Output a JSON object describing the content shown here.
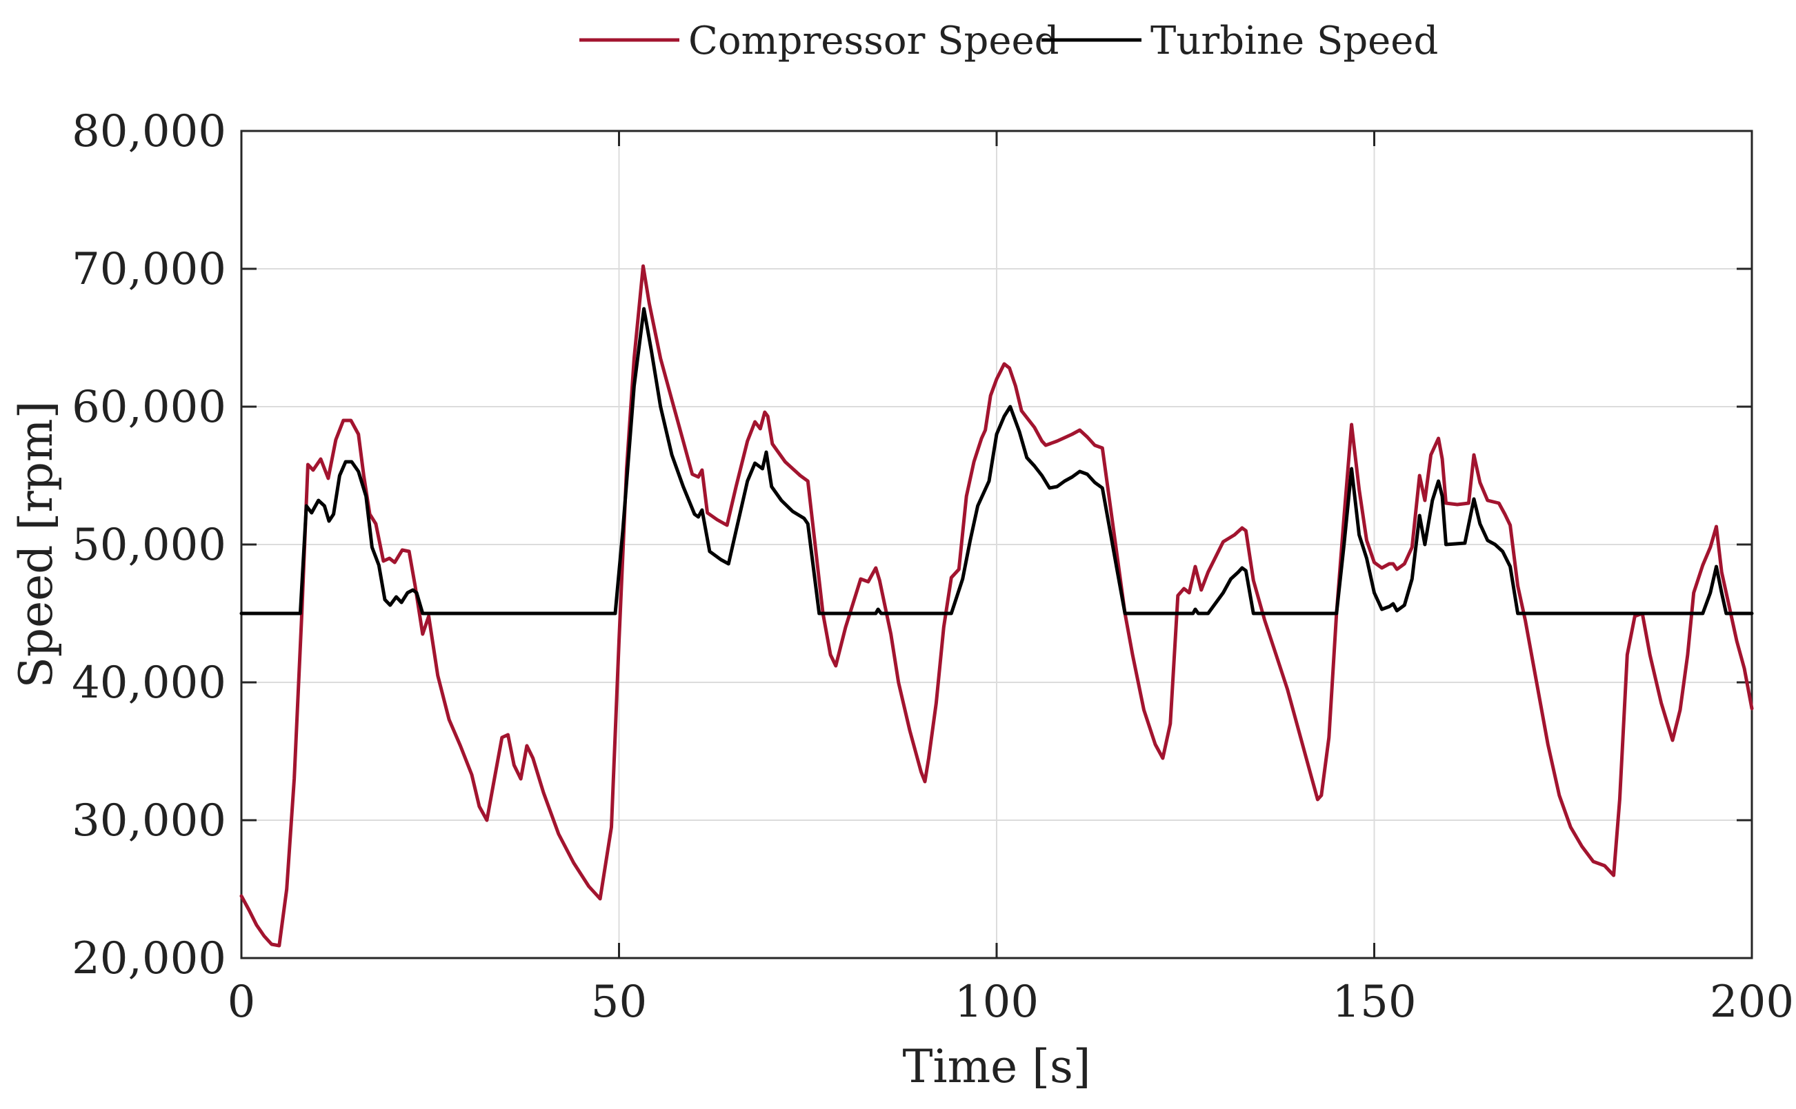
{
  "chart_data": {
    "type": "line",
    "title": "",
    "xlabel": "Time [s]",
    "ylabel": "Speed [rpm]",
    "xlim": [
      0,
      200
    ],
    "ylim": [
      20000,
      80000
    ],
    "xticks": [
      0,
      50,
      100,
      150,
      200
    ],
    "xtick_labels": [
      "0",
      "50",
      "100",
      "150",
      "200"
    ],
    "yticks": [
      20000,
      30000,
      40000,
      50000,
      60000,
      70000,
      80000
    ],
    "ytick_labels": [
      "20,000",
      "30,000",
      "40,000",
      "50,000",
      "60,000",
      "70,000",
      "80,000"
    ],
    "grid": true,
    "legend_position": "top-center",
    "series": [
      {
        "name": "Compressor Speed",
        "color": "#a2142f",
        "points": [
          [
            0,
            24500
          ],
          [
            1,
            23500
          ],
          [
            2,
            22400
          ],
          [
            3,
            21600
          ],
          [
            4,
            21000
          ],
          [
            5,
            20900
          ],
          [
            6,
            25000
          ],
          [
            7,
            33000
          ],
          [
            8,
            45000
          ],
          [
            8.8,
            55800
          ],
          [
            9.5,
            55400
          ],
          [
            10.5,
            56200
          ],
          [
            11.5,
            54800
          ],
          [
            12.5,
            57600
          ],
          [
            13.5,
            59000
          ],
          [
            14.5,
            59000
          ],
          [
            15.5,
            58000
          ],
          [
            16.2,
            55000
          ],
          [
            17,
            52200
          ],
          [
            17.8,
            51500
          ],
          [
            18.8,
            48800
          ],
          [
            19.6,
            49000
          ],
          [
            20.3,
            48700
          ],
          [
            21.3,
            49600
          ],
          [
            22.2,
            49500
          ],
          [
            23,
            47000
          ],
          [
            24,
            43500
          ],
          [
            24.8,
            44800
          ],
          [
            26,
            40500
          ],
          [
            27.5,
            37300
          ],
          [
            29,
            35400
          ],
          [
            30.5,
            33300
          ],
          [
            31.5,
            31000
          ],
          [
            32.5,
            30000
          ],
          [
            33.5,
            33000
          ],
          [
            34.5,
            36000
          ],
          [
            35.3,
            36200
          ],
          [
            36.1,
            34000
          ],
          [
            37,
            33000
          ],
          [
            37.8,
            35400
          ],
          [
            38.6,
            34500
          ],
          [
            40,
            32000
          ],
          [
            42,
            29000
          ],
          [
            44,
            26900
          ],
          [
            46,
            25200
          ],
          [
            47.5,
            24300
          ],
          [
            49,
            29500
          ],
          [
            50,
            43000
          ],
          [
            51,
            55500
          ],
          [
            52,
            63500
          ],
          [
            53.2,
            70200
          ],
          [
            54,
            67500
          ],
          [
            55.5,
            63500
          ],
          [
            57,
            60500
          ],
          [
            58.5,
            57500
          ],
          [
            59.7,
            55100
          ],
          [
            60.5,
            54900
          ],
          [
            61,
            55400
          ],
          [
            61.7,
            52300
          ],
          [
            63,
            51800
          ],
          [
            64.3,
            51400
          ],
          [
            65.5,
            54200
          ],
          [
            67,
            57500
          ],
          [
            68,
            58900
          ],
          [
            68.7,
            58400
          ],
          [
            69.3,
            59600
          ],
          [
            69.7,
            59300
          ],
          [
            70.3,
            57300
          ],
          [
            72,
            56000
          ],
          [
            74,
            55000
          ],
          [
            75,
            54600
          ],
          [
            77,
            45000
          ],
          [
            78,
            42000
          ],
          [
            78.7,
            41200
          ],
          [
            80,
            44000
          ],
          [
            82,
            47500
          ],
          [
            83,
            47300
          ],
          [
            84,
            48300
          ],
          [
            84.5,
            47400
          ],
          [
            86,
            43500
          ],
          [
            87,
            40000
          ],
          [
            88.5,
            36500
          ],
          [
            90,
            33500
          ],
          [
            90.5,
            32800
          ],
          [
            91,
            34500
          ],
          [
            92,
            38500
          ],
          [
            93,
            44000
          ],
          [
            94,
            47600
          ],
          [
            95,
            48200
          ],
          [
            96,
            53500
          ],
          [
            97,
            56000
          ],
          [
            98,
            57700
          ],
          [
            98.5,
            58300
          ],
          [
            99.2,
            60800
          ],
          [
            100,
            62000
          ],
          [
            101,
            63100
          ],
          [
            101.7,
            62800
          ],
          [
            102.5,
            61500
          ],
          [
            103.3,
            59700
          ],
          [
            105,
            58500
          ],
          [
            106,
            57500
          ],
          [
            106.5,
            57200
          ],
          [
            108,
            57500
          ],
          [
            110,
            58000
          ],
          [
            111,
            58300
          ],
          [
            112,
            57800
          ],
          [
            113,
            57200
          ],
          [
            114,
            57000
          ],
          [
            116,
            49000
          ],
          [
            117,
            45000
          ],
          [
            118,
            42000
          ],
          [
            119.5,
            38000
          ],
          [
            121,
            35500
          ],
          [
            122,
            34500
          ],
          [
            123,
            37000
          ],
          [
            124,
            46300
          ],
          [
            124.8,
            46800
          ],
          [
            125.5,
            46500
          ],
          [
            126.3,
            48400
          ],
          [
            127.1,
            46700
          ],
          [
            128,
            48000
          ],
          [
            130,
            50200
          ],
          [
            131.5,
            50700
          ],
          [
            132.5,
            51200
          ],
          [
            133,
            51000
          ],
          [
            134,
            47400
          ],
          [
            135.5,
            44500
          ],
          [
            137,
            42000
          ],
          [
            138.5,
            39500
          ],
          [
            140,
            36500
          ],
          [
            141.5,
            33500
          ],
          [
            142.5,
            31500
          ],
          [
            143,
            31800
          ],
          [
            144,
            36000
          ],
          [
            145,
            45000
          ],
          [
            146,
            52000
          ],
          [
            147,
            58700
          ],
          [
            148,
            54000
          ],
          [
            149,
            50300
          ],
          [
            150,
            48700
          ],
          [
            151,
            48300
          ],
          [
            152,
            48600
          ],
          [
            152.5,
            48600
          ],
          [
            153,
            48200
          ],
          [
            154,
            48600
          ],
          [
            155,
            49800
          ],
          [
            156,
            55000
          ],
          [
            156.7,
            53200
          ],
          [
            157.5,
            56500
          ],
          [
            158.5,
            57700
          ],
          [
            159,
            56200
          ],
          [
            159.5,
            53000
          ],
          [
            161,
            52900
          ],
          [
            162.5,
            53000
          ],
          [
            163.2,
            56500
          ],
          [
            164,
            54500
          ],
          [
            165,
            53200
          ],
          [
            166.5,
            53000
          ],
          [
            167.3,
            52200
          ],
          [
            168,
            51400
          ],
          [
            169,
            47000
          ],
          [
            170,
            44500
          ],
          [
            171.5,
            40000
          ],
          [
            173,
            35500
          ],
          [
            174.5,
            31800
          ],
          [
            176,
            29500
          ],
          [
            177.5,
            28100
          ],
          [
            179,
            27000
          ],
          [
            180.5,
            26700
          ],
          [
            181.7,
            26000
          ],
          [
            182.5,
            31500
          ],
          [
            183.5,
            42000
          ],
          [
            184.5,
            44800
          ],
          [
            185.5,
            45000
          ],
          [
            186.5,
            42000
          ],
          [
            188,
            38500
          ],
          [
            189.5,
            35800
          ],
          [
            190.5,
            38000
          ],
          [
            191.5,
            42000
          ],
          [
            192.3,
            46500
          ],
          [
            193.5,
            48500
          ],
          [
            194.5,
            49800
          ],
          [
            195.3,
            51300
          ],
          [
            196,
            48000
          ],
          [
            197,
            45500
          ],
          [
            198,
            43000
          ],
          [
            199,
            41000
          ],
          [
            200,
            38100
          ]
        ]
      },
      {
        "name": "Turbine Speed",
        "color": "#000000",
        "points": [
          [
            0,
            45000
          ],
          [
            7.8,
            45000
          ],
          [
            8.6,
            52800
          ],
          [
            9.3,
            52300
          ],
          [
            10.2,
            53200
          ],
          [
            11,
            52800
          ],
          [
            11.6,
            51700
          ],
          [
            12.2,
            52200
          ],
          [
            13,
            55000
          ],
          [
            13.8,
            56000
          ],
          [
            14.6,
            56000
          ],
          [
            15.5,
            55300
          ],
          [
            16.5,
            53500
          ],
          [
            17.3,
            49800
          ],
          [
            18.2,
            48500
          ],
          [
            19,
            46000
          ],
          [
            19.7,
            45600
          ],
          [
            20.5,
            46200
          ],
          [
            21.2,
            45800
          ],
          [
            22,
            46500
          ],
          [
            22.7,
            46700
          ],
          [
            23.2,
            46500
          ],
          [
            24,
            45000
          ],
          [
            49.5,
            45000
          ],
          [
            50.5,
            51000
          ],
          [
            52,
            61500
          ],
          [
            53.3,
            67100
          ],
          [
            54.3,
            64000
          ],
          [
            55.5,
            60000
          ],
          [
            57,
            56500
          ],
          [
            58.5,
            54200
          ],
          [
            60,
            52200
          ],
          [
            60.5,
            52000
          ],
          [
            61,
            52500
          ],
          [
            62,
            49500
          ],
          [
            63.5,
            48900
          ],
          [
            64.5,
            48600
          ],
          [
            65.5,
            51000
          ],
          [
            67,
            54600
          ],
          [
            68,
            55900
          ],
          [
            69,
            55500
          ],
          [
            69.5,
            56700
          ],
          [
            70.2,
            54200
          ],
          [
            71.5,
            53200
          ],
          [
            73,
            52400
          ],
          [
            74.5,
            51900
          ],
          [
            75,
            51500
          ],
          [
            76.5,
            45000
          ],
          [
            84,
            45000
          ],
          [
            84.3,
            45300
          ],
          [
            84.7,
            45000
          ],
          [
            94,
            45000
          ],
          [
            95.5,
            47500
          ],
          [
            96.5,
            50300
          ],
          [
            97.5,
            52800
          ],
          [
            99,
            54600
          ],
          [
            100,
            58000
          ],
          [
            101,
            59300
          ],
          [
            101.8,
            60000
          ],
          [
            103,
            58200
          ],
          [
            104,
            56300
          ],
          [
            105,
            55700
          ],
          [
            106,
            55000
          ],
          [
            107,
            54100
          ],
          [
            108,
            54200
          ],
          [
            109,
            54600
          ],
          [
            110,
            54900
          ],
          [
            111,
            55300
          ],
          [
            112,
            55100
          ],
          [
            113,
            54500
          ],
          [
            114,
            54100
          ],
          [
            116,
            48000
          ],
          [
            117,
            45000
          ],
          [
            126,
            45000
          ],
          [
            126.3,
            45300
          ],
          [
            126.7,
            45000
          ],
          [
            128,
            45000
          ],
          [
            130,
            46500
          ],
          [
            131,
            47500
          ],
          [
            132,
            48000
          ],
          [
            132.5,
            48300
          ],
          [
            133,
            48100
          ],
          [
            134,
            45000
          ],
          [
            145,
            45000
          ],
          [
            146,
            50000
          ],
          [
            147,
            55500
          ],
          [
            148,
            50700
          ],
          [
            149,
            49000
          ],
          [
            150,
            46500
          ],
          [
            151,
            45300
          ],
          [
            152,
            45500
          ],
          [
            152.5,
            45700
          ],
          [
            153,
            45200
          ],
          [
            154,
            45600
          ],
          [
            155,
            47500
          ],
          [
            156,
            52100
          ],
          [
            156.7,
            50000
          ],
          [
            157.7,
            53200
          ],
          [
            158.5,
            54600
          ],
          [
            159,
            53500
          ],
          [
            159.5,
            50000
          ],
          [
            162,
            50100
          ],
          [
            163.2,
            53300
          ],
          [
            164,
            51500
          ],
          [
            165,
            50300
          ],
          [
            166,
            50000
          ],
          [
            167,
            49500
          ],
          [
            168,
            48400
          ],
          [
            169,
            45000
          ],
          [
            193.5,
            45000
          ],
          [
            194.5,
            46500
          ],
          [
            195.3,
            48400
          ],
          [
            196,
            46500
          ],
          [
            196.6,
            45000
          ],
          [
            200,
            45000
          ]
        ]
      }
    ]
  }
}
